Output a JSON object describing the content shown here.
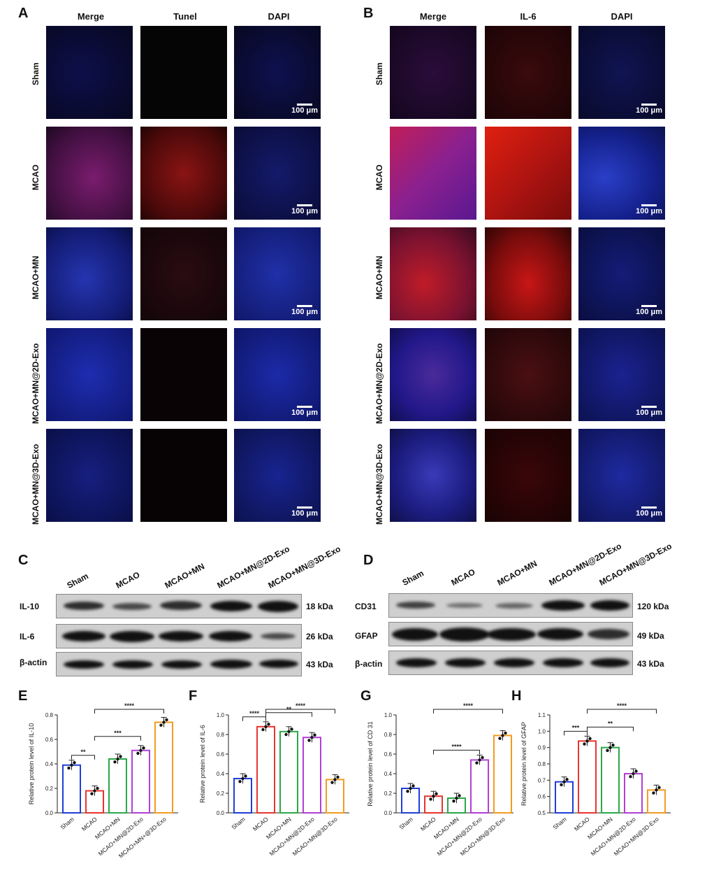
{
  "panels": {
    "A": "A",
    "B": "B",
    "C": "C",
    "D": "D",
    "E": "E",
    "F": "F",
    "G": "G",
    "H": "H"
  },
  "panel_a": {
    "cols": [
      "Merge",
      "Tunel",
      "DAPI"
    ]
  },
  "panel_b": {
    "cols": [
      "Merge",
      "IL-6",
      "DAPI"
    ]
  },
  "groups": [
    "Sham",
    "MCAO",
    "MCAO+MN",
    "MCAO+MN@2D-Exo",
    "MCAO+MN@3D-Exo"
  ],
  "scale_bar": "100 μm",
  "colors": {
    "sham": "#1f3fd6",
    "mcao": "#e8352e",
    "mn": "#2aa84a",
    "mn2d": "#b23fd6",
    "mn3d": "#f39c1f"
  },
  "blot_c": {
    "rows": [
      {
        "label": "IL-10",
        "kda": "18 kDa"
      },
      {
        "label": "IL-6",
        "kda": "26 kDa"
      },
      {
        "label": "β-actin",
        "kda": "43 kDa"
      }
    ]
  },
  "blot_d": {
    "rows": [
      {
        "label": "CD31",
        "kda": "120 kDa"
      },
      {
        "label": "GFAP",
        "kda": "49 kDa"
      },
      {
        "label": "β-actin",
        "kda": "43 kDa"
      }
    ]
  },
  "chart_data": [
    {
      "panel": "E",
      "type": "bar",
      "ylabel": "Relative protein level of IL-10",
      "ylim": [
        0,
        0.8
      ],
      "ticks": [
        "0.0",
        "0.2",
        "0.4",
        "0.6",
        "0.8"
      ],
      "categories": [
        "Sham",
        "MCAO",
        "MCAO+MN",
        "MCAO+MN@2D-Exo",
        "MCAO+MN+@3D-Exo"
      ],
      "values": [
        0.39,
        0.18,
        0.44,
        0.51,
        0.74
      ],
      "sig": [
        {
          "from": 0,
          "to": 1,
          "label": "**"
        },
        {
          "from": 1,
          "to": 3,
          "label": "***"
        },
        {
          "from": 1,
          "to": 4,
          "label": "****"
        }
      ]
    },
    {
      "panel": "F",
      "type": "bar",
      "ylabel": "Relative protein level of IL-6",
      "ylim": [
        0,
        1.0
      ],
      "ticks": [
        "0.0",
        "0.2",
        "0.4",
        "0.6",
        "0.8",
        "1.0"
      ],
      "categories": [
        "Sham",
        "MCAO",
        "MCAO+MN",
        "MCAO+MN@2D-Exo",
        "MCAO+MN@3D-Exo"
      ],
      "values": [
        0.35,
        0.88,
        0.83,
        0.77,
        0.34
      ],
      "sig": [
        {
          "from": 1,
          "to": 0,
          "label": "****"
        },
        {
          "from": 1,
          "to": 3,
          "label": "**"
        },
        {
          "from": 1,
          "to": 4,
          "label": "****"
        }
      ]
    },
    {
      "panel": "G",
      "type": "bar",
      "ylabel": "Relative protein level of CD 31",
      "ylim": [
        0,
        1.0
      ],
      "ticks": [
        "0.0",
        "0.2",
        "0.4",
        "0.6",
        "0.8",
        "1.0"
      ],
      "categories": [
        "Sham",
        "MCAO",
        "MCAO+MN",
        "MCAO+MN@2D-Exo",
        "MCAO+MN@3D-Exo"
      ],
      "values": [
        0.25,
        0.17,
        0.15,
        0.54,
        0.79
      ],
      "sig": [
        {
          "from": 1,
          "to": 3,
          "label": "****"
        },
        {
          "from": 1,
          "to": 4,
          "label": "****"
        }
      ]
    },
    {
      "panel": "H",
      "type": "bar",
      "ylabel": "Relative protein level of GFAP",
      "ylim": [
        0.5,
        1.1
      ],
      "ticks": [
        "0.5",
        "0.6",
        "0.7",
        "0.8",
        "0.9",
        "1.0",
        "1.1"
      ],
      "categories": [
        "Sham",
        "MCAO",
        "MCAO+MN",
        "MCAO+MN@2D-Exo",
        "MCAO+MN@3D-Exo"
      ],
      "values": [
        0.69,
        0.94,
        0.9,
        0.74,
        0.64
      ],
      "sig": [
        {
          "from": 1,
          "to": 0,
          "label": "***"
        },
        {
          "from": 1,
          "to": 3,
          "label": "**"
        },
        {
          "from": 1,
          "to": 4,
          "label": "****"
        }
      ]
    }
  ]
}
